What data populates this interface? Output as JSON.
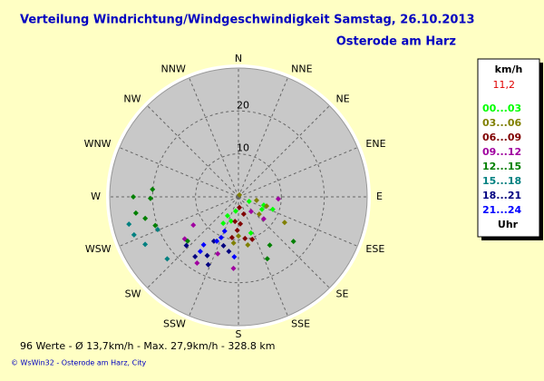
{
  "chart_data": {
    "type": "polar-scatter",
    "title": "Verteilung Windrichtung/Windgeschwindigkeit  Samstag, 26.10.2013",
    "subtitle": "Osterode am Harz",
    "directions": [
      "N",
      "NNE",
      "NE",
      "ENE",
      "E",
      "ESE",
      "SE",
      "SSE",
      "S",
      "SSW",
      "SW",
      "WSW",
      "W",
      "WNW",
      "NW",
      "NNW"
    ],
    "rlim": [
      0,
      30
    ],
    "rticks": [
      10,
      20
    ],
    "legend_unit": "km/h",
    "legend_value": "11,2",
    "legend_footer": "Uhr",
    "series": [
      {
        "name": "00...03",
        "color": "#00ff00",
        "direction": [
          210,
          197,
          210,
          191,
          118,
          108,
          110,
          161,
          113
        ],
        "speed": [
          5.1,
          5.9,
          7.1,
          3.4,
          6.2,
          6.2,
          8.5,
          8.9,
          2.7
        ]
      },
      {
        "name": "03...06",
        "color": "#808000",
        "direction": [
          27,
          101,
          130,
          119,
          108,
          180,
          186,
          169
        ],
        "speed": [
          0.5,
          4.3,
          6.3,
          12.3,
          6.9,
          9.1,
          10.8,
          11.4
        ]
      },
      {
        "name": "06...09",
        "color": "#800000",
        "direction": [
          175,
          163,
          188,
          176,
          189,
          182,
          171,
          162
        ],
        "speed": [
          2.5,
          4.2,
          5.8,
          6.3,
          9.6,
          7.8,
          9.8,
          10.4
        ]
      },
      {
        "name": "09...12",
        "color": "#a000a0",
        "direction": [
          93,
          131,
          139,
          238,
          232,
          184,
          212,
          200
        ],
        "speed": [
          9.3,
          7.8,
          4.5,
          12.4,
          15.9,
          16.7,
          18.2,
          14.1
        ]
      },
      {
        "name": "12...15",
        "color": "#008000",
        "direction": [
          275,
          269,
          270,
          261,
          257,
          251,
          129,
          147,
          155,
          229
        ],
        "speed": [
          20.1,
          20.5,
          24.5,
          24.2,
          22.3,
          20.5,
          16.5,
          13.4,
          15.9,
          15.7
        ]
      },
      {
        "name": "15...18",
        "color": "#008080",
        "direction": [
          250,
          243,
          256,
          229,
          248
        ],
        "speed": [
          25.9,
          24.4,
          26.3,
          22.0,
          20.3
        ]
      },
      {
        "name": "18...21",
        "color": "#000080",
        "direction": [
          227,
          216,
          208,
          209,
          197,
          190,
          204
        ],
        "speed": [
          16.6,
          17.2,
          15.5,
          11.8,
          11.9,
          12.9,
          17.3
        ]
      },
      {
        "name": "21...24",
        "color": "#0000ff",
        "direction": [
          202,
          206,
          216,
          203,
          215,
          184
        ],
        "speed": [
          8.6,
          11.5,
          13.8,
          10.3,
          15.5,
          14.0
        ]
      }
    ],
    "footer_stats": "96 Werte   -   Ø 13,7km/h   -   Max. 27,9km/h   -   328.8 km",
    "credit": "© WsWin32  -  Osterode am Harz, City"
  }
}
